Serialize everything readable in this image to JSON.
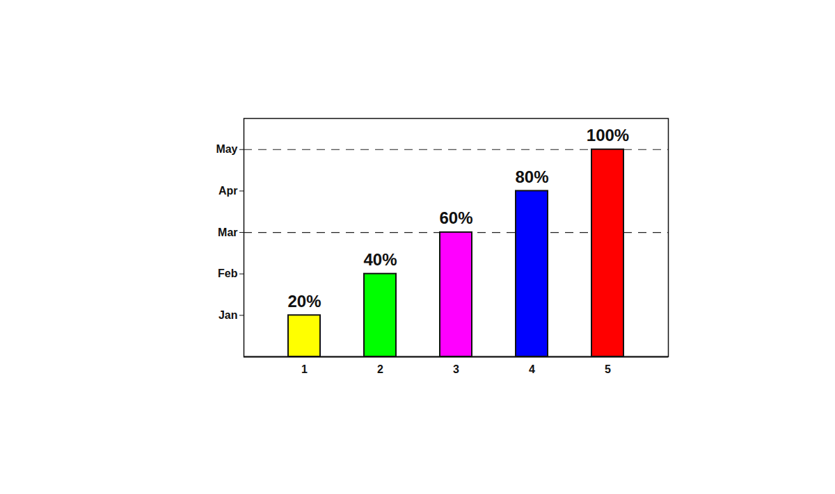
{
  "chart_data": {
    "type": "bar",
    "categories": [
      "1",
      "2",
      "3",
      "4",
      "5"
    ],
    "values": [
      20,
      40,
      60,
      80,
      100
    ],
    "value_labels": [
      "20%",
      "40%",
      "60%",
      "80%",
      "100%"
    ],
    "colors": [
      "#ffff00",
      "#00ff00",
      "#ff00ff",
      "#0000ff",
      "#ff0000"
    ],
    "ylim": [
      0,
      115
    ],
    "yticks": [
      {
        "value": 20,
        "label": "Jan"
      },
      {
        "value": 40,
        "label": "Feb"
      },
      {
        "value": 60,
        "label": "Mar"
      },
      {
        "value": 80,
        "label": "Apr"
      },
      {
        "value": 100,
        "label": "May"
      }
    ],
    "reference_lines": [
      60,
      100
    ],
    "data_labels": true,
    "grid": false
  }
}
